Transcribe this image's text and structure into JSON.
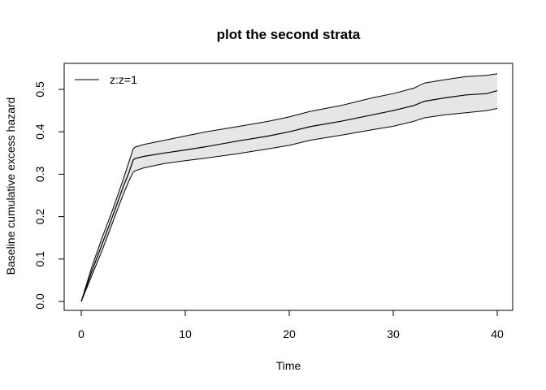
{
  "chart_data": {
    "type": "area",
    "title": "plot the second strata",
    "xlabel": "Time",
    "ylabel": "Baseline cumulative excess hazard",
    "xlim": [
      0,
      40
    ],
    "ylim": [
      0,
      0.5
    ],
    "xticks": [
      "0",
      "10",
      "20",
      "30",
      "40"
    ],
    "yticks": [
      "0.0",
      "0.1",
      "0.2",
      "0.3",
      "0.4",
      "0.5"
    ],
    "legend": {
      "position": "top-left",
      "entries": [
        "z:z=1"
      ]
    },
    "band_fill": "#e6e6e6",
    "line_color": "#000000",
    "series": [
      {
        "name": "z:z=1",
        "x": [
          0,
          1,
          2,
          3,
          4,
          4.6,
          5,
          5.2,
          6,
          8,
          10,
          12,
          15,
          18,
          20,
          22,
          25,
          28,
          30,
          32,
          33,
          35,
          37,
          39,
          40
        ],
        "y": [
          0,
          0.07,
          0.135,
          0.2,
          0.268,
          0.305,
          0.334,
          0.337,
          0.342,
          0.35,
          0.357,
          0.365,
          0.378,
          0.39,
          0.4,
          0.412,
          0.425,
          0.44,
          0.45,
          0.462,
          0.472,
          0.48,
          0.487,
          0.49,
          0.497
        ],
        "lower": [
          0,
          0.06,
          0.12,
          0.185,
          0.25,
          0.285,
          0.305,
          0.308,
          0.315,
          0.325,
          0.332,
          0.338,
          0.348,
          0.36,
          0.368,
          0.38,
          0.392,
          0.405,
          0.413,
          0.425,
          0.433,
          0.44,
          0.445,
          0.45,
          0.455
        ],
        "upper": [
          0,
          0.08,
          0.15,
          0.215,
          0.285,
          0.33,
          0.36,
          0.364,
          0.37,
          0.38,
          0.39,
          0.4,
          0.412,
          0.425,
          0.435,
          0.448,
          0.462,
          0.48,
          0.49,
          0.503,
          0.515,
          0.523,
          0.53,
          0.533,
          0.537
        ]
      }
    ]
  }
}
